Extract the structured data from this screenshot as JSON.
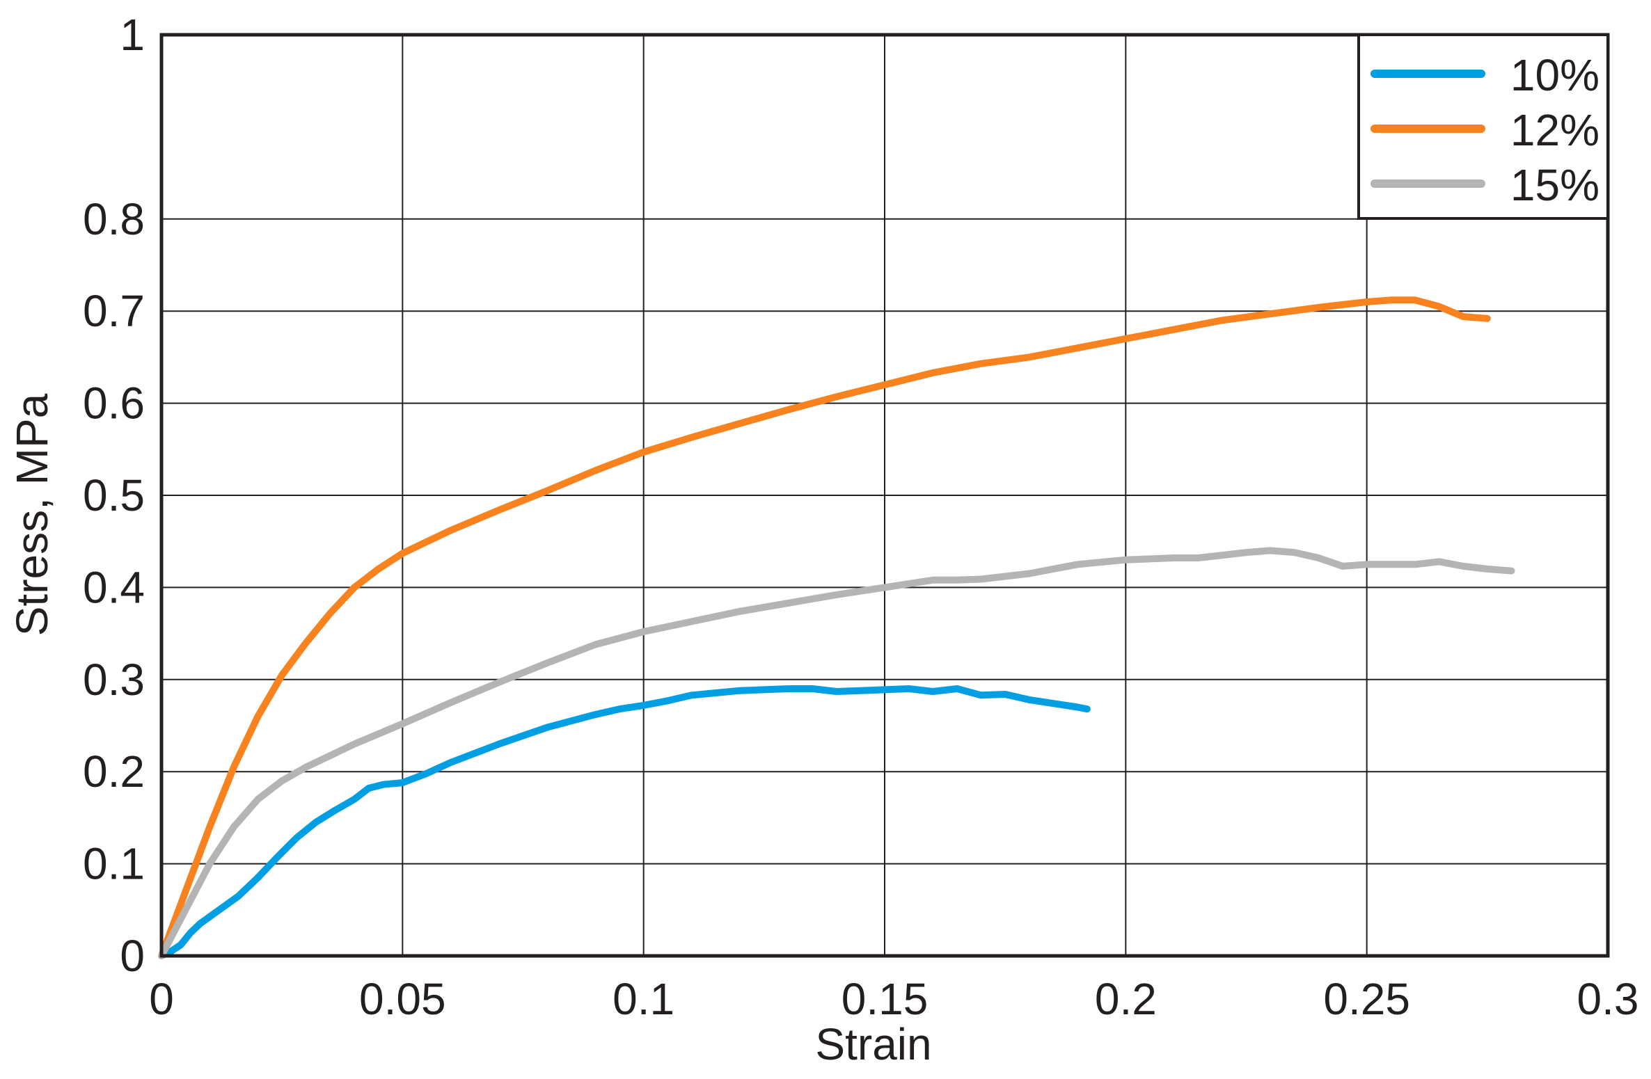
{
  "chart_data": {
    "type": "line",
    "title": "",
    "xlabel": "Strain",
    "ylabel": "Stress, MPa",
    "xlim": [
      0,
      0.3
    ],
    "ylim": [
      0,
      1
    ],
    "x_ticks": [
      "0",
      "0.05",
      "0.1",
      "0.15",
      "0.2",
      "0.25",
      "0.3"
    ],
    "y_ticks": [
      "0",
      "0.1",
      "0.2",
      "0.3",
      "0.4",
      "0.5",
      "0.6",
      "0.7",
      "0.8",
      "1"
    ],
    "y_tick_values": [
      0,
      0.1,
      0.2,
      0.3,
      0.4,
      0.5,
      0.6,
      0.7,
      0.8,
      1.0
    ],
    "grid": true,
    "legend_position": "top-right",
    "series": [
      {
        "name": "10%",
        "color": "#009fe3",
        "points": [
          [
            0,
            0
          ],
          [
            0.002,
            0.005
          ],
          [
            0.004,
            0.012
          ],
          [
            0.006,
            0.025
          ],
          [
            0.008,
            0.035
          ],
          [
            0.012,
            0.05
          ],
          [
            0.016,
            0.065
          ],
          [
            0.02,
            0.085
          ],
          [
            0.024,
            0.107
          ],
          [
            0.028,
            0.128
          ],
          [
            0.032,
            0.145
          ],
          [
            0.036,
            0.158
          ],
          [
            0.04,
            0.17
          ],
          [
            0.043,
            0.182
          ],
          [
            0.046,
            0.186
          ],
          [
            0.05,
            0.188
          ],
          [
            0.055,
            0.198
          ],
          [
            0.06,
            0.21
          ],
          [
            0.07,
            0.23
          ],
          [
            0.08,
            0.248
          ],
          [
            0.09,
            0.262
          ],
          [
            0.095,
            0.268
          ],
          [
            0.1,
            0.272
          ],
          [
            0.105,
            0.277
          ],
          [
            0.11,
            0.283
          ],
          [
            0.12,
            0.288
          ],
          [
            0.13,
            0.29
          ],
          [
            0.135,
            0.29
          ],
          [
            0.14,
            0.287
          ],
          [
            0.145,
            0.288
          ],
          [
            0.15,
            0.289
          ],
          [
            0.155,
            0.29
          ],
          [
            0.16,
            0.287
          ],
          [
            0.165,
            0.29
          ],
          [
            0.17,
            0.283
          ],
          [
            0.175,
            0.284
          ],
          [
            0.18,
            0.278
          ],
          [
            0.19,
            0.27
          ],
          [
            0.192,
            0.268
          ]
        ]
      },
      {
        "name": "12%",
        "color": "#f7821e",
        "points": [
          [
            0,
            0
          ],
          [
            0.005,
            0.07
          ],
          [
            0.01,
            0.14
          ],
          [
            0.015,
            0.205
          ],
          [
            0.02,
            0.26
          ],
          [
            0.025,
            0.305
          ],
          [
            0.03,
            0.34
          ],
          [
            0.035,
            0.372
          ],
          [
            0.04,
            0.4
          ],
          [
            0.045,
            0.42
          ],
          [
            0.05,
            0.437
          ],
          [
            0.06,
            0.462
          ],
          [
            0.07,
            0.484
          ],
          [
            0.08,
            0.505
          ],
          [
            0.09,
            0.527
          ],
          [
            0.1,
            0.547
          ],
          [
            0.11,
            0.563
          ],
          [
            0.12,
            0.578
          ],
          [
            0.13,
            0.593
          ],
          [
            0.14,
            0.607
          ],
          [
            0.15,
            0.62
          ],
          [
            0.16,
            0.633
          ],
          [
            0.17,
            0.643
          ],
          [
            0.18,
            0.65
          ],
          [
            0.19,
            0.66
          ],
          [
            0.2,
            0.67
          ],
          [
            0.21,
            0.68
          ],
          [
            0.22,
            0.69
          ],
          [
            0.23,
            0.697
          ],
          [
            0.24,
            0.704
          ],
          [
            0.25,
            0.71
          ],
          [
            0.255,
            0.712
          ],
          [
            0.26,
            0.712
          ],
          [
            0.265,
            0.705
          ],
          [
            0.27,
            0.694
          ],
          [
            0.275,
            0.692
          ]
        ]
      },
      {
        "name": "15%",
        "color": "#b4b4b4",
        "points": [
          [
            0,
            0
          ],
          [
            0.005,
            0.05
          ],
          [
            0.01,
            0.1
          ],
          [
            0.015,
            0.14
          ],
          [
            0.02,
            0.17
          ],
          [
            0.025,
            0.19
          ],
          [
            0.03,
            0.205
          ],
          [
            0.04,
            0.23
          ],
          [
            0.05,
            0.252
          ],
          [
            0.06,
            0.275
          ],
          [
            0.07,
            0.297
          ],
          [
            0.08,
            0.318
          ],
          [
            0.09,
            0.338
          ],
          [
            0.1,
            0.352
          ],
          [
            0.11,
            0.363
          ],
          [
            0.12,
            0.374
          ],
          [
            0.13,
            0.383
          ],
          [
            0.14,
            0.392
          ],
          [
            0.15,
            0.4
          ],
          [
            0.16,
            0.408
          ],
          [
            0.165,
            0.408
          ],
          [
            0.17,
            0.409
          ],
          [
            0.18,
            0.415
          ],
          [
            0.19,
            0.425
          ],
          [
            0.2,
            0.43
          ],
          [
            0.21,
            0.432
          ],
          [
            0.215,
            0.432
          ],
          [
            0.22,
            0.435
          ],
          [
            0.225,
            0.438
          ],
          [
            0.23,
            0.44
          ],
          [
            0.235,
            0.438
          ],
          [
            0.24,
            0.432
          ],
          [
            0.245,
            0.423
          ],
          [
            0.25,
            0.425
          ],
          [
            0.26,
            0.425
          ],
          [
            0.265,
            0.428
          ],
          [
            0.27,
            0.423
          ],
          [
            0.275,
            0.42
          ],
          [
            0.28,
            0.418
          ]
        ]
      }
    ]
  }
}
